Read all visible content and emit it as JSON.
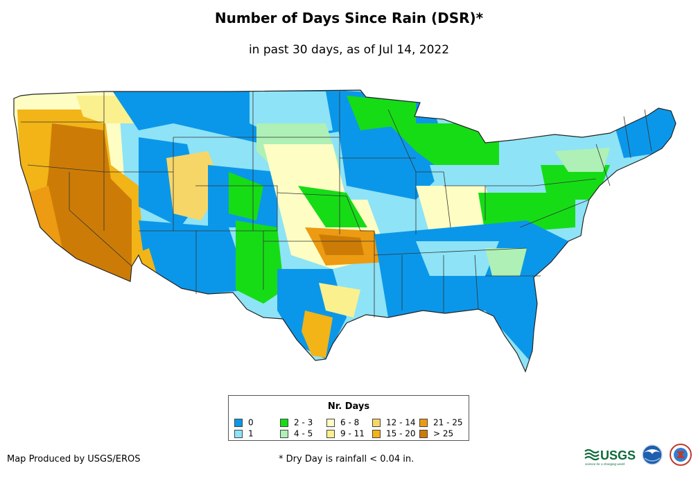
{
  "title": "Number of Days Since Rain (DSR)*",
  "subtitle": "in past 30 days, as of Jul 14, 2022",
  "legend": {
    "title": "Nr. Days",
    "items": [
      {
        "label": "0",
        "color": "#0b97e9"
      },
      {
        "label": "1",
        "color": "#8ee3f6"
      },
      {
        "label": "2 - 3",
        "color": "#16dc16"
      },
      {
        "label": "4 - 5",
        "color": "#aef0b6"
      },
      {
        "label": "6 - 8",
        "color": "#fdfdc4"
      },
      {
        "label": "9 - 11",
        "color": "#fbf08e"
      },
      {
        "label": "12 - 14",
        "color": "#f7d668"
      },
      {
        "label": "15 - 20",
        "color": "#f2b417"
      },
      {
        "label": "21 - 25",
        "color": "#ec9b12"
      },
      {
        "label": "> 25",
        "color": "#cc7c06"
      }
    ]
  },
  "credit": "Map Produced by USGS/EROS",
  "footnote": "* Dry Day is rainfall < 0.04 in.",
  "logos": {
    "usgs": "USGS",
    "usgs_tagline": "science for a changing world"
  }
}
